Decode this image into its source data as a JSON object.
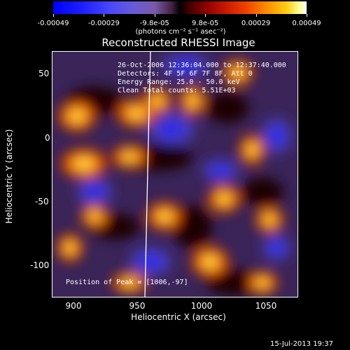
{
  "colorbar": {
    "tick_labels": [
      "-0.00049",
      "-0.00029",
      "-9.8e-05",
      "9.8e-05",
      "0.00029",
      "0.00049"
    ],
    "units": "(photons cm⁻² s⁻¹ asec⁻²)"
  },
  "plot": {
    "title": "Reconstructed RHESSI Image",
    "info_lines": [
      "26-Oct-2006 12:36:04.000 to 12:37:40.000",
      "Detectors: 4F 5F 6F 7F 8F, Att 0",
      "Energy Range: 25.0 - 50.0 keV",
      "Clean    Total counts: 5.51E+03"
    ],
    "peak_text": "Position of Peak = [1006,-97]",
    "x_axis": {
      "label": "Heliocentric X (arcsec)",
      "ticks": [
        "900",
        "950",
        "1000",
        "1050"
      ]
    },
    "y_axis": {
      "label": "Heliocentric Y (arcsec)",
      "ticks": [
        "50",
        "0",
        "-50",
        "-100"
      ]
    }
  },
  "footer": {
    "timestamp": "15-Jul-2013 19:37"
  },
  "colors": {
    "background": "#000000",
    "foreground": "#ffffff"
  }
}
